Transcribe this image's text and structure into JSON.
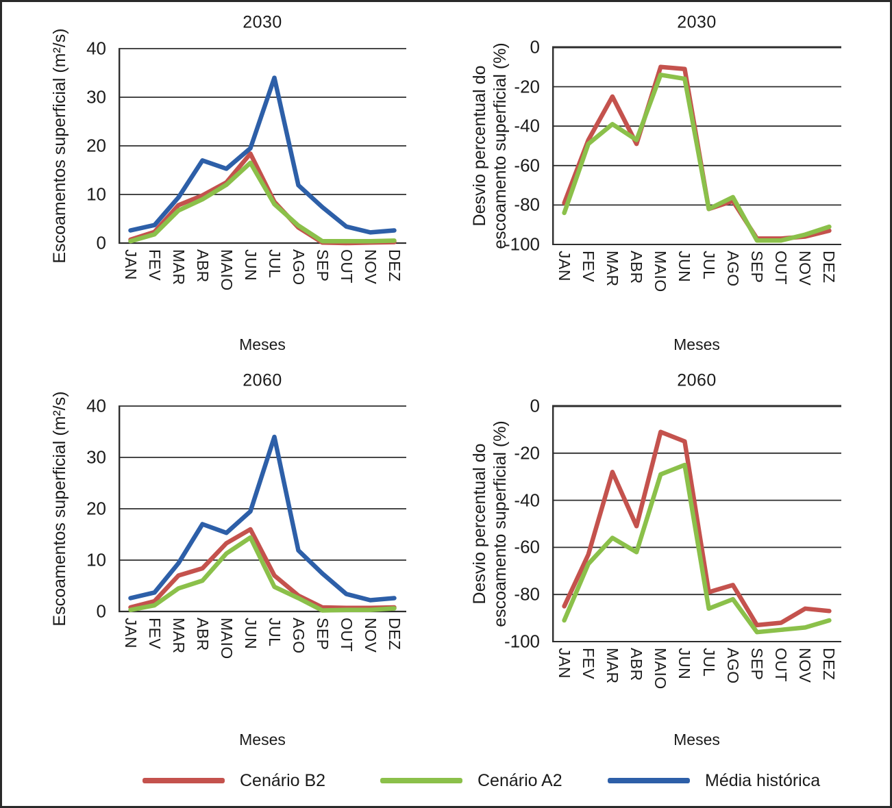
{
  "figure": {
    "months": [
      "JAN",
      "FEV",
      "MAR",
      "ABR",
      "MAIO",
      "JUN",
      "JUL",
      "AGO",
      "SEP",
      "OUT",
      "NOV",
      "DEZ"
    ],
    "grid_color": "#2d2d2d"
  },
  "legend": [
    {
      "label": "Cenário B2",
      "color": "#c4524d"
    },
    {
      "label": "Cenário A2",
      "color": "#8bc04a"
    },
    {
      "label": "Média histórica",
      "color": "#2d5fa8"
    }
  ],
  "chart_data": [
    {
      "id": "flow-2030",
      "type": "line",
      "title": "2030",
      "xlabel": "Meses",
      "ylabel": "Escoamentos superficial  (m²/s)",
      "ylabel_lines": [
        "Escoamentos superficial  (m²/s)"
      ],
      "categories": [
        "JAN",
        "FEV",
        "MAR",
        "ABR",
        "MAIO",
        "JUN",
        "JUL",
        "AGO",
        "SEP",
        "OUT",
        "NOV",
        "DEZ"
      ],
      "ylim": [
        0,
        40
      ],
      "yticks": [
        40,
        30,
        20,
        10,
        0
      ],
      "grid": true,
      "series": [
        {
          "name": "Cenário B2",
          "color": "#c4524d",
          "values": [
            0.7,
            2.3,
            7.8,
            9.8,
            12.5,
            18.4,
            8.5,
            3.2,
            0.1,
            0.0,
            0.1,
            0.2
          ]
        },
        {
          "name": "Cenário A2",
          "color": "#8bc04a",
          "values": [
            0.4,
            1.8,
            6.7,
            9.0,
            12.0,
            16.5,
            8.0,
            3.6,
            0.4,
            0.4,
            0.4,
            0.5
          ]
        },
        {
          "name": "Média histórica",
          "color": "#2d5fa8",
          "values": [
            2.6,
            3.7,
            9.4,
            17.0,
            15.3,
            19.5,
            34.0,
            11.9,
            7.4,
            3.4,
            2.2,
            2.6
          ]
        }
      ]
    },
    {
      "id": "dev-2030",
      "type": "line",
      "title": "2030",
      "xlabel": "Meses",
      "ylabel": "Desvio percentual do escoamento superficial (%)",
      "ylabel_lines": [
        "Desvio percentual do",
        "escoamento superficial (%)"
      ],
      "categories": [
        "JAN",
        "FEV",
        "MAR",
        "ABR",
        "MAIO",
        "JUN",
        "JUL",
        "AGO",
        "SEP",
        "OUT",
        "NOV",
        "DEZ"
      ],
      "ylim": [
        -100,
        0
      ],
      "yticks": [
        0,
        -20,
        -40,
        -60,
        -80,
        -100
      ],
      "grid": true,
      "series": [
        {
          "name": "Cenário B2",
          "color": "#c4524d",
          "values": [
            -79,
            -47,
            -25,
            -49,
            -10,
            -11,
            -82,
            -78,
            -97,
            -97,
            -96,
            -93
          ]
        },
        {
          "name": "Cenário A2",
          "color": "#8bc04a",
          "values": [
            -84,
            -49,
            -39,
            -47,
            -14,
            -16,
            -82,
            -76,
            -98,
            -98,
            -95,
            -91
          ]
        }
      ]
    },
    {
      "id": "flow-2060",
      "type": "line",
      "title": "2060",
      "xlabel": "Meses",
      "ylabel": "Escoamentos superficial  (m²/s)",
      "ylabel_lines": [
        "Escoamentos superficial  (m²/s)"
      ],
      "categories": [
        "JAN",
        "FEV",
        "MAR",
        "ABR",
        "MAIO",
        "JUN",
        "JUL",
        "AGO",
        "SEP",
        "OUT",
        "NOV",
        "DEZ"
      ],
      "ylim": [
        0,
        40
      ],
      "yticks": [
        40,
        30,
        20,
        10,
        0
      ],
      "grid": true,
      "series": [
        {
          "name": "Cenário B2",
          "color": "#c4524d",
          "values": [
            0.8,
            2.0,
            7.0,
            8.4,
            13.3,
            16.0,
            7.0,
            3.1,
            0.8,
            0.7,
            0.7,
            0.8
          ]
        },
        {
          "name": "Cenário A2",
          "color": "#8bc04a",
          "values": [
            0.3,
            1.2,
            4.5,
            6.0,
            11.3,
            14.4,
            4.8,
            2.6,
            0.2,
            0.3,
            0.3,
            0.6
          ]
        },
        {
          "name": "Média histórica",
          "color": "#2d5fa8",
          "values": [
            2.6,
            3.7,
            9.4,
            17.0,
            15.3,
            19.5,
            34.0,
            11.9,
            7.4,
            3.4,
            2.2,
            2.6
          ]
        }
      ]
    },
    {
      "id": "dev-2060",
      "type": "line",
      "title": "2060",
      "xlabel": "Meses",
      "ylabel": "Desvio percentual do escoamento superficial (%)",
      "ylabel_lines": [
        "Desvio percentual do",
        "escoamento superficial (%)"
      ],
      "categories": [
        "JAN",
        "FEV",
        "MAR",
        "ABR",
        "MAIO",
        "JUN",
        "JUL",
        "AGO",
        "SEP",
        "OUT",
        "NOV",
        "DEZ"
      ],
      "ylim": [
        -100,
        0
      ],
      "yticks": [
        0,
        -20,
        -40,
        -60,
        -80,
        -100
      ],
      "grid": true,
      "series": [
        {
          "name": "Cenário B2",
          "color": "#c4524d",
          "values": [
            -85,
            -63,
            -28,
            -51,
            -11,
            -15,
            -79,
            -76,
            -93,
            -92,
            -86,
            -87
          ]
        },
        {
          "name": "Cenário A2",
          "color": "#8bc04a",
          "values": [
            -91,
            -67,
            -56,
            -62,
            -29,
            -25,
            -86,
            -82,
            -96,
            -95,
            -94,
            -91
          ]
        }
      ]
    }
  ]
}
